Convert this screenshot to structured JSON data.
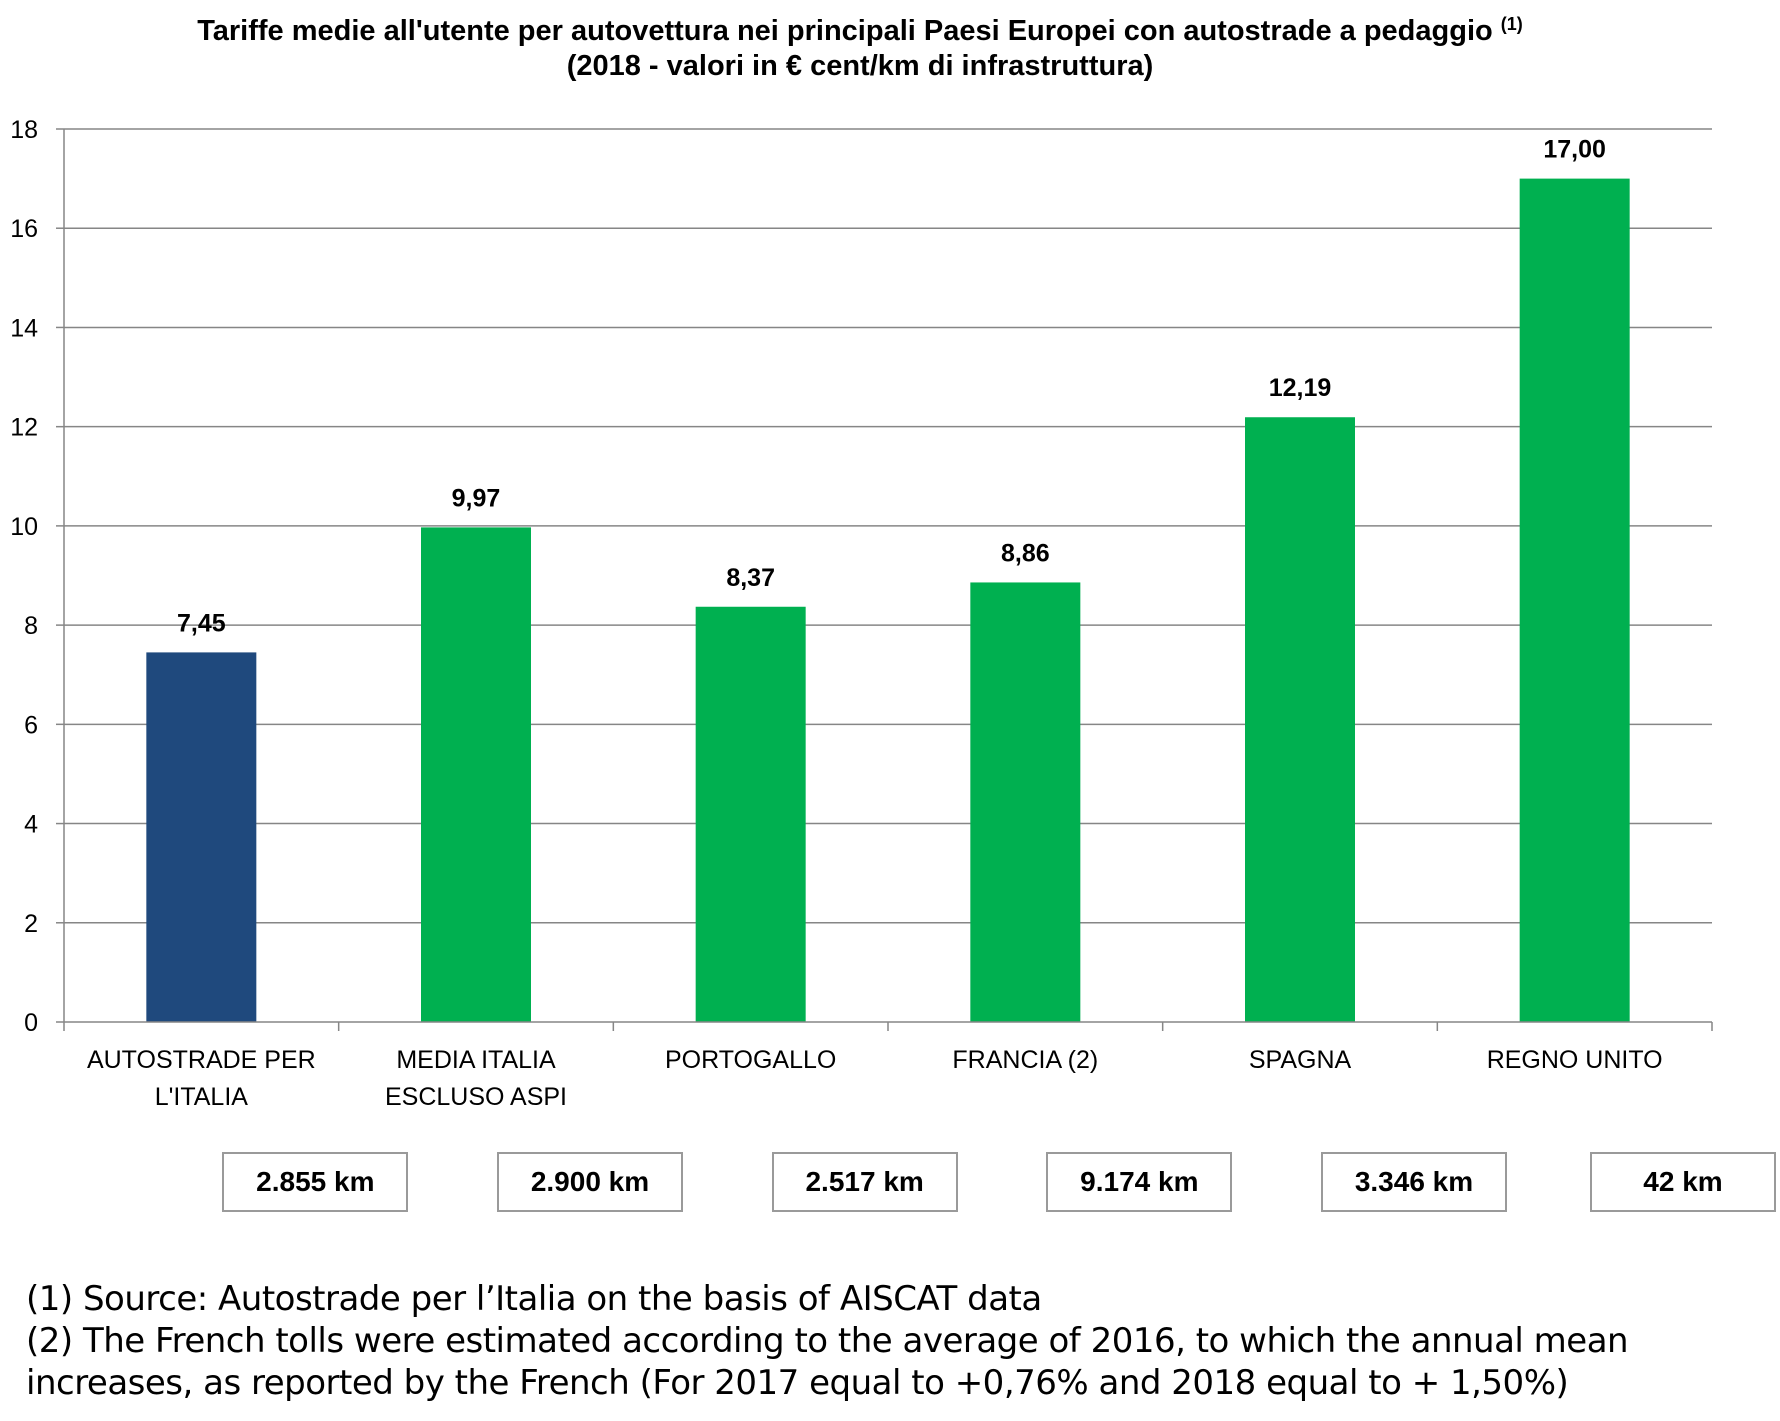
{
  "chart_data": {
    "type": "bar",
    "title": "Tariffe medie all'utente per autovettura nei principali  Paesi Europei con autostrade a pedaggio",
    "title_note": "(1)",
    "subtitle": "(2018 - valori in € cent/km di infrastruttura)",
    "xlabel": "",
    "ylabel": "",
    "ylim": [
      0,
      18
    ],
    "yticks": [
      "0",
      "2",
      "4",
      "6",
      "8",
      "10",
      "12",
      "14",
      "16",
      "18"
    ],
    "grid": true,
    "categories": [
      [
        "AUTOSTRADE PER",
        "L'ITALIA"
      ],
      [
        "MEDIA ITALIA",
        "ESCLUSO ASPI"
      ],
      [
        "PORTOGALLO"
      ],
      [
        "FRANCIA (2)"
      ],
      [
        "SPAGNA"
      ],
      [
        "REGNO UNITO"
      ]
    ],
    "values": [
      7.45,
      9.97,
      8.37,
      8.86,
      12.19,
      17.0
    ],
    "value_labels": [
      "7,45",
      "9,97",
      "8,37",
      "8,86",
      "12,19",
      "17,00"
    ],
    "bar_colors": [
      "#1f497d",
      "#00b050",
      "#00b050",
      "#00b050",
      "#00b050",
      "#00b050"
    ],
    "network_lengths": [
      "2.855 km",
      "2.900 km",
      "2.517 km",
      "9.174 km",
      "3.346 km",
      "42 km"
    ]
  },
  "footnotes": {
    "note1": "(1) Source: Autostrade per l’Italia on the basis of AISCAT data",
    "note2_line1": "(2) The French tolls were estimated according to the average of 2016, to which the annual mean",
    "note2_line2": "increases, as reported by the French (For 2017 equal to +0,76% and 2018 equal to + 1,50%)"
  },
  "colors": {
    "axis": "#868686",
    "grid": "#868686"
  }
}
